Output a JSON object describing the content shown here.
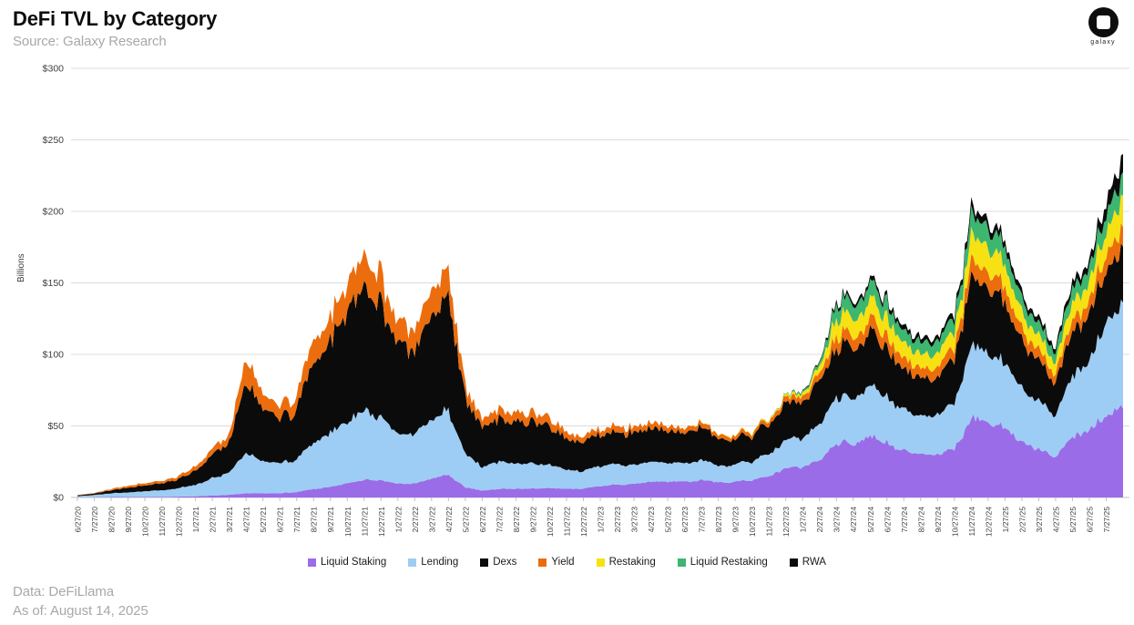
{
  "header": {
    "title": "DeFi TVL by Category",
    "subtitle": "Source: Galaxy Research",
    "logo_text": "galaxy"
  },
  "footer": {
    "data_source": "Data: DeFiLlama",
    "as_of": "As of: August 14, 2025"
  },
  "chart_data": {
    "type": "area",
    "stacked": true,
    "title": "DeFi TVL by Category",
    "xlabel": "",
    "ylabel": "Billions",
    "ylim": [
      0,
      300
    ],
    "ytick_prefix": "$",
    "yticks": [
      0,
      50,
      100,
      150,
      200,
      250,
      300
    ],
    "grid": true,
    "legend_position": "bottom",
    "units": "USD billions",
    "x_labels": [
      "6/27/20",
      "7/27/20",
      "8/27/20",
      "9/27/20",
      "10/27/20",
      "11/27/20",
      "12/27/20",
      "1/27/21",
      "2/27/21",
      "3/27/21",
      "4/27/21",
      "5/27/21",
      "6/27/21",
      "7/27/21",
      "8/27/21",
      "9/27/21",
      "10/27/21",
      "11/27/21",
      "12/27/21",
      "1/27/22",
      "2/27/22",
      "3/27/22",
      "4/27/22",
      "5/27/22",
      "6/27/22",
      "7/27/22",
      "8/27/22",
      "9/27/22",
      "10/27/22",
      "11/27/22",
      "12/27/22",
      "1/27/23",
      "2/27/23",
      "3/27/23",
      "4/27/23",
      "5/27/23",
      "6/27/23",
      "7/27/23",
      "8/27/23",
      "9/27/23",
      "10/27/23",
      "11/27/23",
      "12/27/23",
      "1/27/24",
      "2/27/24",
      "3/27/24",
      "4/27/24",
      "5/27/24",
      "6/27/24",
      "7/27/24",
      "8/27/24",
      "9/27/24",
      "10/27/24",
      "11/27/24",
      "12/27/24",
      "1/27/25",
      "2/27/25",
      "3/27/25",
      "4/27/25",
      "5/27/25",
      "6/27/25",
      "7/27/25"
    ],
    "x_end_point": "8/14/25",
    "series": [
      {
        "name": "Liquid Staking",
        "color": "#9B6CE8",
        "values": [
          0.1,
          0.2,
          0.3,
          0.4,
          0.4,
          0.5,
          0.6,
          0.9,
          1.4,
          1.9,
          2.8,
          2.9,
          3.0,
          3.8,
          6,
          7.5,
          10,
          12,
          12,
          10,
          10,
          13,
          16,
          7,
          5,
          6,
          6,
          6,
          6.5,
          6,
          6,
          8,
          9,
          10,
          11,
          11,
          11,
          12,
          11,
          11,
          12,
          16,
          20,
          22,
          26,
          40,
          38,
          44,
          38,
          32,
          30,
          30,
          33,
          52,
          54,
          51,
          40,
          33,
          28,
          45,
          44,
          60,
          64
        ]
      },
      {
        "name": "Lending",
        "color": "#9DCDF4",
        "values": [
          0.8,
          1.5,
          2.6,
          3.2,
          4.0,
          4.8,
          5.8,
          8.5,
          12.5,
          15.5,
          28,
          22,
          21,
          23,
          33,
          38,
          44,
          47,
          44,
          36,
          35,
          40,
          45,
          24,
          17,
          19,
          18,
          16.5,
          16,
          13,
          12,
          14,
          14,
          14,
          14,
          13,
          13,
          14,
          12,
          12,
          13,
          16,
          19,
          21,
          25,
          34,
          32,
          36,
          32,
          28,
          27,
          27,
          31,
          47,
          50,
          48,
          38,
          32,
          28,
          46,
          45,
          66,
          72
        ]
      },
      {
        "name": "Dexs",
        "color": "#0B0B0B",
        "values": [
          0.6,
          1.0,
          2.2,
          3.4,
          4.2,
          5.2,
          6.5,
          10.5,
          17,
          22,
          48,
          36,
          32,
          34,
          55,
          62,
          76,
          84,
          79,
          62,
          60,
          70,
          81,
          39,
          29,
          30,
          29,
          27,
          26.5,
          22,
          20.5,
          22,
          23,
          24,
          24,
          22.5,
          21,
          22.5,
          19.5,
          18.5,
          18.5,
          22,
          26,
          26,
          29,
          38,
          36,
          39,
          34,
          28,
          27,
          27,
          30,
          45,
          48,
          45,
          33,
          27,
          22,
          32,
          31,
          38,
          38
        ]
      },
      {
        "name": "Yield",
        "color": "#EC6D0D",
        "values": [
          0.2,
          0.4,
          0.9,
          1.4,
          1.6,
          1.8,
          2.1,
          3.1,
          4.6,
          5.8,
          16,
          10,
          9,
          9.5,
          15.5,
          17,
          19.5,
          22,
          20,
          16,
          15,
          16.5,
          19,
          8.5,
          6,
          7,
          6.5,
          6,
          6,
          4.5,
          3.8,
          4.2,
          4.2,
          4.2,
          4,
          3.6,
          3.2,
          3.5,
          2.8,
          2.6,
          2.6,
          3.0,
          3.6,
          4.0,
          5.0,
          9,
          8.5,
          9.5,
          8.5,
          7.5,
          7,
          7,
          7.5,
          11,
          11.5,
          11,
          8.5,
          7,
          6,
          9,
          8.5,
          12,
          14
        ]
      },
      {
        "name": "Restaking",
        "color": "#F8E112",
        "values": [
          0,
          0,
          0,
          0,
          0,
          0,
          0,
          0,
          0,
          0,
          0,
          0,
          0,
          0,
          0,
          0,
          0,
          0,
          0,
          0,
          0,
          0,
          0,
          0,
          0,
          0,
          0,
          0,
          0,
          0,
          0,
          0,
          0,
          0,
          0,
          0,
          0.1,
          0.2,
          0.3,
          0.4,
          0.5,
          0.8,
          1.4,
          2.2,
          4.5,
          13,
          12.5,
          14,
          12.5,
          10,
          9.8,
          9.8,
          11,
          17,
          18,
          17,
          12,
          9.5,
          8,
          13,
          12.5,
          17,
          21
        ]
      },
      {
        "name": "Liquid Restaking",
        "color": "#3DB66F",
        "values": [
          0,
          0,
          0,
          0,
          0,
          0,
          0,
          0,
          0,
          0,
          0,
          0,
          0,
          0,
          0,
          0,
          0,
          0,
          0,
          0,
          0,
          0,
          0,
          0,
          0,
          0,
          0,
          0,
          0,
          0,
          0,
          0,
          0,
          0,
          0,
          0,
          0,
          0,
          0,
          0,
          0,
          0.2,
          0.5,
          1.2,
          2.5,
          10,
          10,
          12,
          10,
          8.5,
          8.2,
          8.2,
          9,
          13,
          13.5,
          13,
          9.5,
          8,
          6.8,
          10,
          9.5,
          13,
          15
        ]
      },
      {
        "name": "RWA",
        "color": "#0B0B0B",
        "values": [
          0,
          0,
          0,
          0,
          0,
          0,
          0,
          0,
          0,
          0,
          0,
          0,
          0,
          0,
          0,
          0,
          0,
          0,
          0,
          0,
          0,
          0,
          0,
          0,
          0,
          0,
          0,
          0,
          0,
          0,
          0,
          0,
          0,
          0,
          0,
          0,
          0,
          0,
          0,
          0,
          0,
          0,
          0,
          0.5,
          0.8,
          2.5,
          2.5,
          3,
          3,
          3,
          3,
          3,
          3.5,
          5,
          5,
          5,
          4,
          3.5,
          3.2,
          5,
          4.5,
          9,
          14
        ]
      }
    ]
  }
}
